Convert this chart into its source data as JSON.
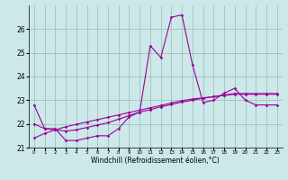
{
  "xlabel": "Windchill (Refroidissement éolien,°C)",
  "hours": [
    0,
    1,
    2,
    3,
    4,
    5,
    6,
    7,
    8,
    9,
    10,
    11,
    12,
    13,
    14,
    15,
    16,
    17,
    18,
    19,
    20,
    21,
    22,
    23
  ],
  "line1": [
    22.8,
    21.8,
    21.8,
    21.3,
    21.3,
    21.4,
    21.5,
    21.5,
    21.8,
    22.3,
    22.5,
    25.3,
    24.8,
    26.5,
    26.6,
    24.5,
    22.9,
    23.0,
    23.3,
    23.5,
    23.0,
    22.8,
    22.8,
    22.8
  ],
  "line2": [
    22.0,
    21.8,
    21.75,
    21.7,
    21.75,
    21.85,
    21.95,
    22.05,
    22.2,
    22.35,
    22.5,
    22.6,
    22.72,
    22.82,
    22.92,
    23.0,
    23.08,
    23.15,
    23.22,
    23.28,
    23.28,
    23.28,
    23.28,
    23.28
  ],
  "line3": [
    21.4,
    21.6,
    21.75,
    21.88,
    21.98,
    22.08,
    22.18,
    22.28,
    22.38,
    22.48,
    22.58,
    22.68,
    22.78,
    22.88,
    22.98,
    23.05,
    23.1,
    23.15,
    23.2,
    23.25,
    23.25,
    23.25,
    23.25,
    23.25
  ],
  "line_color": "#990099",
  "bg_color": "#cce8e8",
  "grid_color": "#99bbbb",
  "ylim": [
    21.0,
    27.0
  ],
  "yticks": [
    21,
    22,
    23,
    24,
    25,
    26
  ],
  "xtick_labels": [
    "0",
    "1",
    "2",
    "3",
    "4",
    "5",
    "6",
    "7",
    "8",
    "9",
    "10",
    "11",
    "12",
    "13",
    "14",
    "15",
    "16",
    "17",
    "18",
    "19",
    "20",
    "21",
    "22",
    "23"
  ],
  "marker": "D",
  "markersize": 1.8,
  "linewidth": 0.8
}
